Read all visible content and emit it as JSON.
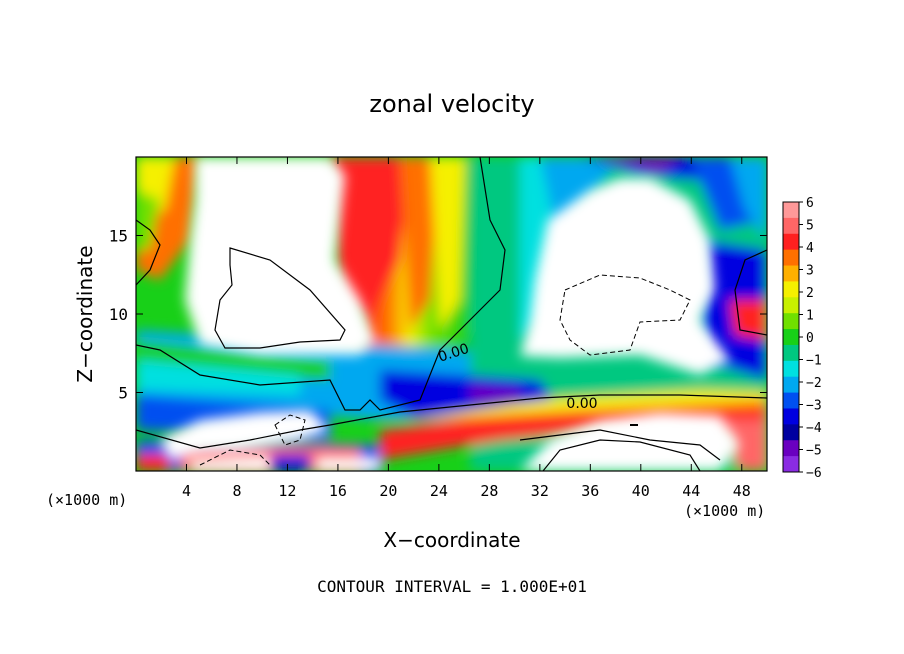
{
  "chart_data": {
    "type": "heatmap",
    "title": "zonal velocity",
    "xlabel": "X−coordinate",
    "ylabel": "Z−coordinate",
    "x_unit_left": "(×1000 m)",
    "x_unit_right": "(×1000 m)",
    "footer": "CONTOUR INTERVAL = 1.000E+01",
    "xlim": [
      0,
      50
    ],
    "ylim": [
      0,
      20
    ],
    "xticks": [
      "4",
      "8",
      "12",
      "16",
      "20",
      "24",
      "28",
      "32",
      "36",
      "40",
      "44",
      "48"
    ],
    "yticks": [
      "5",
      "10",
      "15"
    ],
    "contour_labels": [
      "0.00",
      "0.00"
    ],
    "colorbar": {
      "ticks": [
        "6",
        "5",
        "4",
        "3",
        "2",
        "1",
        "0",
        "−1",
        "−2",
        "−3",
        "−4",
        "−5",
        "−6"
      ],
      "range": [
        -6,
        6
      ],
      "colors": [
        "#ff9999",
        "#ff6666",
        "#ff2020",
        "#ff7000",
        "#ffb000",
        "#f5f000",
        "#c8f000",
        "#70e000",
        "#18d018",
        "#00c880",
        "#00e0e0",
        "#00a8f0",
        "#0050f0",
        "#0000e0",
        "#0000a0",
        "#6a00c0",
        "#8a2be2"
      ]
    },
    "grid": false,
    "legend_placement": "right"
  }
}
